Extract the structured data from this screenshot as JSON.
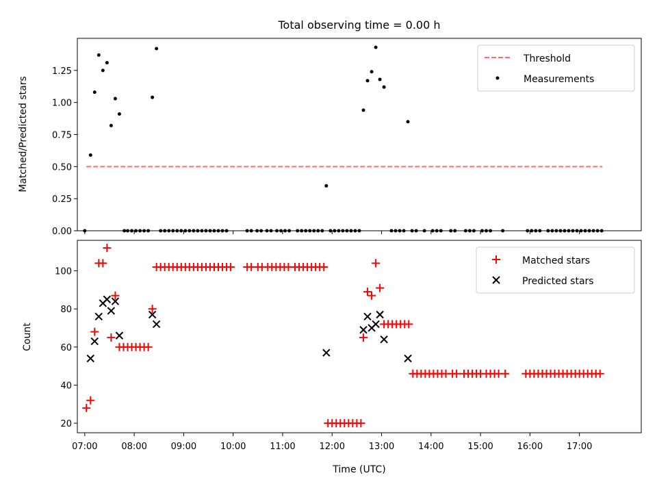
{
  "figure_title": "Total observing time = 0.00 h",
  "colors": {
    "threshold": "#ff6b6b",
    "measurements": "#000000",
    "matched": "#ff0000",
    "predicted": "#000000"
  },
  "chart_data": [
    {
      "type": "scatter",
      "ylabel": "Matched/Predicted stars",
      "xlabel": "",
      "xlim": [
        "06:51",
        "18:15"
      ],
      "ylim": [
        0,
        1.5
      ],
      "yticks": [
        "0.00",
        "0.25",
        "0.50",
        "0.75",
        "1.00",
        "1.25"
      ],
      "grid": false,
      "legend_position": "top-right",
      "threshold": {
        "name": "Threshold",
        "y": 0.5,
        "x_start": "07:02",
        "x_end": "17:28"
      },
      "measurements": {
        "name": "Measurements",
        "points": [
          [
            "07:00",
            0
          ],
          [
            "07:07",
            0.59
          ],
          [
            "07:12",
            1.08
          ],
          [
            "07:17",
            1.37
          ],
          [
            "07:22",
            1.25
          ],
          [
            "07:27",
            1.31
          ],
          [
            "07:32",
            0.82
          ],
          [
            "07:37",
            1.03
          ],
          [
            "07:42",
            0.91
          ],
          [
            "07:48",
            0
          ],
          [
            "07:52",
            0
          ],
          [
            "07:57",
            0
          ],
          [
            "08:02",
            0
          ],
          [
            "08:07",
            0
          ],
          [
            "08:12",
            0
          ],
          [
            "08:17",
            0
          ],
          [
            "08:22",
            1.04
          ],
          [
            "08:27",
            1.42
          ],
          [
            "08:32",
            0
          ],
          [
            "08:37",
            0
          ],
          [
            "08:42",
            0
          ],
          [
            "08:47",
            0
          ],
          [
            "08:52",
            0
          ],
          [
            "08:57",
            0
          ],
          [
            "09:02",
            0
          ],
          [
            "09:07",
            0
          ],
          [
            "09:12",
            0
          ],
          [
            "09:17",
            0
          ],
          [
            "09:22",
            0
          ],
          [
            "09:27",
            0
          ],
          [
            "09:32",
            0
          ],
          [
            "09:37",
            0
          ],
          [
            "09:42",
            0
          ],
          [
            "09:47",
            0
          ],
          [
            "09:52",
            0
          ],
          [
            "10:17",
            0
          ],
          [
            "10:22",
            0
          ],
          [
            "10:29",
            0
          ],
          [
            "10:34",
            0
          ],
          [
            "10:41",
            0
          ],
          [
            "10:46",
            0
          ],
          [
            "10:53",
            0
          ],
          [
            "10:58",
            0
          ],
          [
            "11:03",
            0
          ],
          [
            "11:08",
            0
          ],
          [
            "11:18",
            0
          ],
          [
            "11:23",
            0
          ],
          [
            "11:28",
            0
          ],
          [
            "11:33",
            0
          ],
          [
            "11:38",
            0
          ],
          [
            "11:43",
            0
          ],
          [
            "11:48",
            0
          ],
          [
            "11:53",
            0.35
          ],
          [
            "11:58",
            0
          ],
          [
            "12:03",
            0
          ],
          [
            "12:08",
            0
          ],
          [
            "12:13",
            0
          ],
          [
            "12:18",
            0
          ],
          [
            "12:23",
            0
          ],
          [
            "12:28",
            0
          ],
          [
            "12:33",
            0
          ],
          [
            "12:38",
            0.94
          ],
          [
            "12:43",
            1.17
          ],
          [
            "12:48",
            1.24
          ],
          [
            "12:53",
            1.43
          ],
          [
            "12:58",
            1.18
          ],
          [
            "13:03",
            1.12
          ],
          [
            "13:12",
            0
          ],
          [
            "13:17",
            0
          ],
          [
            "13:22",
            0
          ],
          [
            "13:27",
            0
          ],
          [
            "13:32",
            0.85
          ],
          [
            "13:37",
            0
          ],
          [
            "13:42",
            0
          ],
          [
            "13:52",
            0
          ],
          [
            "14:02",
            0
          ],
          [
            "14:07",
            0
          ],
          [
            "14:12",
            0
          ],
          [
            "14:24",
            0
          ],
          [
            "14:29",
            0
          ],
          [
            "14:42",
            0
          ],
          [
            "14:47",
            0
          ],
          [
            "14:52",
            0
          ],
          [
            "15:02",
            0
          ],
          [
            "15:07",
            0
          ],
          [
            "15:12",
            0
          ],
          [
            "15:27",
            0
          ],
          [
            "15:57",
            0
          ],
          [
            "16:02",
            0
          ],
          [
            "16:07",
            0
          ],
          [
            "16:12",
            0
          ],
          [
            "16:22",
            0
          ],
          [
            "16:27",
            0
          ],
          [
            "16:32",
            0
          ],
          [
            "16:37",
            0
          ],
          [
            "16:42",
            0
          ],
          [
            "16:47",
            0
          ],
          [
            "16:52",
            0
          ],
          [
            "16:57",
            0
          ],
          [
            "17:02",
            0
          ],
          [
            "17:07",
            0
          ],
          [
            "17:12",
            0
          ],
          [
            "17:17",
            0
          ],
          [
            "17:22",
            0
          ],
          [
            "17:27",
            0
          ]
        ]
      }
    },
    {
      "type": "scatter",
      "ylabel": "Count",
      "xlabel": "Time (UTC)",
      "xlim": [
        "06:51",
        "18:15"
      ],
      "ylim": [
        15,
        116
      ],
      "yticks": [
        "20",
        "40",
        "60",
        "80",
        "100"
      ],
      "xticks": [
        "07:00",
        "08:00",
        "09:00",
        "10:00",
        "11:00",
        "12:00",
        "13:00",
        "14:00",
        "15:00",
        "16:00",
        "17:00"
      ],
      "grid": false,
      "legend_position": "top-right",
      "series": [
        {
          "name": "Matched stars",
          "marker": "plus",
          "points": [
            [
              "07:02",
              28
            ],
            [
              "07:07",
              32
            ],
            [
              "07:12",
              68
            ],
            [
              "07:17",
              104
            ],
            [
              "07:22",
              104
            ],
            [
              "07:27",
              112
            ],
            [
              "07:32",
              65
            ],
            [
              "07:37",
              87
            ],
            [
              "07:42",
              60
            ],
            [
              "07:47",
              60
            ],
            [
              "07:52",
              60
            ],
            [
              "07:57",
              60
            ],
            [
              "08:02",
              60
            ],
            [
              "08:07",
              60
            ],
            [
              "08:12",
              60
            ],
            [
              "08:17",
              60
            ],
            [
              "08:22",
              80
            ],
            [
              "08:27",
              102
            ],
            [
              "08:32",
              102
            ],
            [
              "08:37",
              102
            ],
            [
              "08:42",
              102
            ],
            [
              "08:47",
              102
            ],
            [
              "08:52",
              102
            ],
            [
              "08:57",
              102
            ],
            [
              "09:02",
              102
            ],
            [
              "09:07",
              102
            ],
            [
              "09:12",
              102
            ],
            [
              "09:17",
              102
            ],
            [
              "09:22",
              102
            ],
            [
              "09:27",
              102
            ],
            [
              "09:32",
              102
            ],
            [
              "09:37",
              102
            ],
            [
              "09:42",
              102
            ],
            [
              "09:47",
              102
            ],
            [
              "09:52",
              102
            ],
            [
              "09:57",
              102
            ],
            [
              "10:17",
              102
            ],
            [
              "10:22",
              102
            ],
            [
              "10:30",
              102
            ],
            [
              "10:35",
              102
            ],
            [
              "10:42",
              102
            ],
            [
              "10:47",
              102
            ],
            [
              "10:52",
              102
            ],
            [
              "10:57",
              102
            ],
            [
              "11:02",
              102
            ],
            [
              "11:07",
              102
            ],
            [
              "11:15",
              102
            ],
            [
              "11:20",
              102
            ],
            [
              "11:25",
              102
            ],
            [
              "11:30",
              102
            ],
            [
              "11:35",
              102
            ],
            [
              "11:40",
              102
            ],
            [
              "11:45",
              102
            ],
            [
              "11:50",
              102
            ],
            [
              "11:55",
              20
            ],
            [
              "12:00",
              20
            ],
            [
              "12:05",
              20
            ],
            [
              "12:10",
              20
            ],
            [
              "12:15",
              20
            ],
            [
              "12:20",
              20
            ],
            [
              "12:25",
              20
            ],
            [
              "12:30",
              20
            ],
            [
              "12:35",
              20
            ],
            [
              "12:38",
              65
            ],
            [
              "12:43",
              89
            ],
            [
              "12:48",
              87
            ],
            [
              "12:53",
              104
            ],
            [
              "12:58",
              91
            ],
            [
              "13:03",
              72
            ],
            [
              "13:08",
              72
            ],
            [
              "13:13",
              72
            ],
            [
              "13:18",
              72
            ],
            [
              "13:23",
              72
            ],
            [
              "13:28",
              72
            ],
            [
              "13:33",
              72
            ],
            [
              "13:38",
              46
            ],
            [
              "13:43",
              46
            ],
            [
              "13:48",
              46
            ],
            [
              "13:53",
              46
            ],
            [
              "13:58",
              46
            ],
            [
              "14:03",
              46
            ],
            [
              "14:08",
              46
            ],
            [
              "14:13",
              46
            ],
            [
              "14:18",
              46
            ],
            [
              "14:26",
              46
            ],
            [
              "14:31",
              46
            ],
            [
              "14:40",
              46
            ],
            [
              "14:45",
              46
            ],
            [
              "14:50",
              46
            ],
            [
              "14:55",
              46
            ],
            [
              "15:00",
              46
            ],
            [
              "15:07",
              46
            ],
            [
              "15:12",
              46
            ],
            [
              "15:17",
              46
            ],
            [
              "15:22",
              46
            ],
            [
              "15:30",
              46
            ],
            [
              "15:55",
              46
            ],
            [
              "16:00",
              46
            ],
            [
              "16:05",
              46
            ],
            [
              "16:10",
              46
            ],
            [
              "16:15",
              46
            ],
            [
              "16:20",
              46
            ],
            [
              "16:25",
              46
            ],
            [
              "16:30",
              46
            ],
            [
              "16:35",
              46
            ],
            [
              "16:40",
              46
            ],
            [
              "16:45",
              46
            ],
            [
              "16:50",
              46
            ],
            [
              "16:55",
              46
            ],
            [
              "17:00",
              46
            ],
            [
              "17:05",
              46
            ],
            [
              "17:10",
              46
            ],
            [
              "17:15",
              46
            ],
            [
              "17:20",
              46
            ],
            [
              "17:25",
              46
            ]
          ]
        },
        {
          "name": "Predicted stars",
          "marker": "x",
          "points": [
            [
              "07:07",
              54
            ],
            [
              "07:12",
              63
            ],
            [
              "07:17",
              76
            ],
            [
              "07:22",
              83
            ],
            [
              "07:27",
              85
            ],
            [
              "07:32",
              79
            ],
            [
              "07:37",
              84
            ],
            [
              "07:42",
              66
            ],
            [
              "08:22",
              77
            ],
            [
              "08:27",
              72
            ],
            [
              "11:53",
              57
            ],
            [
              "12:38",
              69
            ],
            [
              "12:43",
              76
            ],
            [
              "12:48",
              70
            ],
            [
              "12:53",
              72
            ],
            [
              "12:58",
              77
            ],
            [
              "13:03",
              64
            ],
            [
              "13:32",
              54
            ]
          ]
        }
      ]
    }
  ]
}
